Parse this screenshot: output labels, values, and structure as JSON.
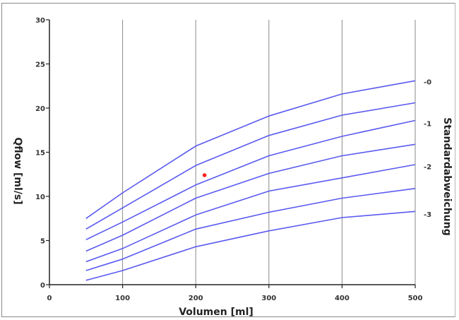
{
  "chart_data": {
    "type": "line",
    "xlabel": "Volumen [ml]",
    "ylabel": "Qflow [ml/s]",
    "right_axis_label": "Standardabweichung",
    "xlim": [
      0,
      500
    ],
    "ylim": [
      0,
      30
    ],
    "x_ticks": [
      0,
      100,
      200,
      300,
      400,
      500
    ],
    "y_ticks": [
      0,
      5,
      10,
      15,
      20,
      25,
      30
    ],
    "x_tick_labels": [
      "0",
      "100",
      "200",
      "300",
      "400",
      "500"
    ],
    "y_tick_labels": [
      "0",
      "5",
      "10",
      "15",
      "20",
      "25",
      "30"
    ],
    "vertical_grid": true,
    "horizontal_grid": false,
    "line_color": "#5a5af0",
    "point_color": "#ff2020",
    "x": [
      50,
      100,
      200,
      300,
      400,
      500
    ],
    "series": [
      {
        "values": [
          7.5,
          10.4,
          15.7,
          19.1,
          21.6,
          23.1
        ]
      },
      {
        "values": [
          6.3,
          8.7,
          13.5,
          16.9,
          19.2,
          20.6
        ]
      },
      {
        "values": [
          5.1,
          7.1,
          11.3,
          14.6,
          16.8,
          18.6
        ]
      },
      {
        "values": [
          3.8,
          5.6,
          9.8,
          12.6,
          14.6,
          15.9
        ]
      },
      {
        "values": [
          2.6,
          4.1,
          7.9,
          10.6,
          12.1,
          13.6
        ]
      },
      {
        "values": [
          1.6,
          2.9,
          6.3,
          8.2,
          9.8,
          10.9
        ]
      },
      {
        "values": [
          0.5,
          1.6,
          4.3,
          6.1,
          7.6,
          8.3
        ]
      }
    ],
    "right_ticks": [
      {
        "label": "-0",
        "y": 23.0
      },
      {
        "label": "-1",
        "y": 18.3
      },
      {
        "label": "-2",
        "y": 13.4
      },
      {
        "label": "-3",
        "y": 8.0
      }
    ],
    "points": [
      {
        "x": 212,
        "y": 12.4
      }
    ]
  }
}
